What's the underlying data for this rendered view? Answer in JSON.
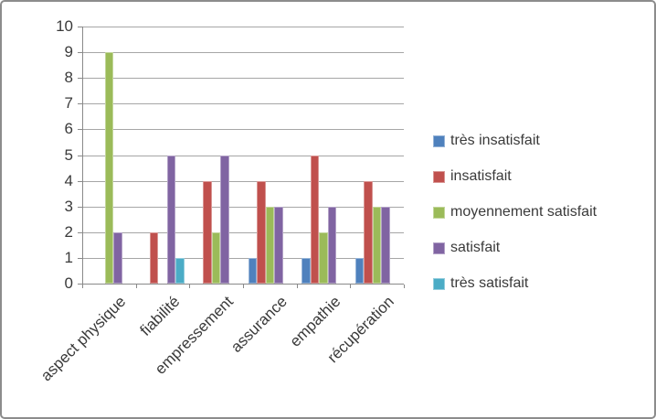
{
  "chart_data": {
    "type": "bar",
    "title": "",
    "xlabel": "",
    "ylabel": "",
    "categories": [
      "aspect physique",
      "fiabilité",
      "empressement",
      "assurance",
      "empathie",
      "récupération"
    ],
    "series": [
      {
        "name": "très insatisfait",
        "color": "#4F81BD",
        "border_color": "#95B3D7",
        "values": [
          0,
          0,
          0,
          1,
          1,
          1
        ]
      },
      {
        "name": "insatisfait",
        "color": "#C0504D",
        "border_color": "#D99694",
        "values": [
          0,
          2,
          4,
          4,
          5,
          4
        ]
      },
      {
        "name": "moyennement satisfait",
        "color": "#9BBB59",
        "border_color": "#C3D69B",
        "values": [
          9,
          0,
          2,
          3,
          2,
          3
        ]
      },
      {
        "name": "satisfait",
        "color": "#8064A2",
        "border_color": "#B3A2C7",
        "values": [
          2,
          5,
          5,
          3,
          3,
          3
        ]
      },
      {
        "name": "très satisfait",
        "color": "#4BACC6",
        "border_color": "#93CDDD",
        "values": [
          0,
          1,
          0,
          0,
          0,
          0
        ]
      }
    ],
    "ylim": [
      0,
      10
    ],
    "yticks": [
      0,
      1,
      2,
      3,
      4,
      5,
      6,
      7,
      8,
      9,
      10
    ],
    "grid": true,
    "legend_position": "right"
  },
  "style": {
    "gridline_color": "#A6A6A6",
    "axis_color": "#898989",
    "text_color": "#3A3A3A",
    "frame_border_color": "#8C8C8C",
    "background": "#FFFFFF"
  }
}
